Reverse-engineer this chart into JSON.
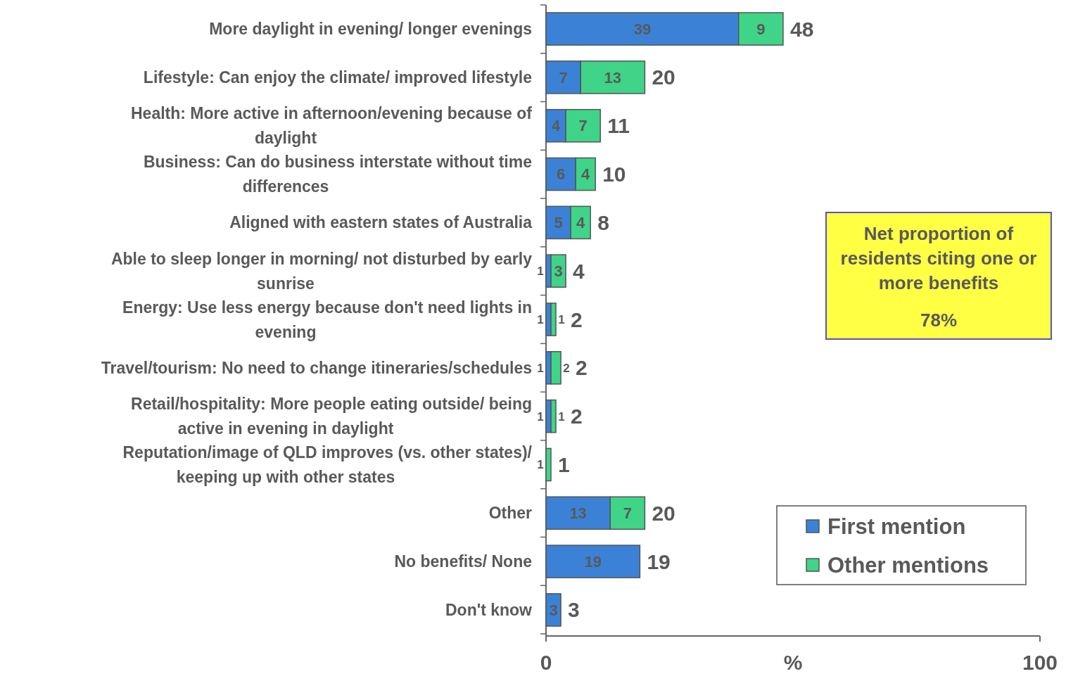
{
  "chart_data": {
    "type": "bar",
    "orientation": "horizontal",
    "stacked": true,
    "categories": [
      "More daylight in evening/ longer evenings",
      "Lifestyle: Can enjoy the climate/ improved lifestyle",
      "Health: More active in afternoon/evening because of daylight",
      "Business: Can do business interstate without time differences",
      "Aligned with eastern states of Australia",
      "Able to sleep longer in morning/ not disturbed by early sunrise",
      "Energy: Use less energy because don't need lights in evening",
      "Travel/tourism: No need to change itineraries/schedules",
      "Retail/hospitality: More people eating outside/ being active in evening in daylight",
      "Reputation/image of QLD improves (vs. other states)/ keeping up with other states",
      "Other",
      "No benefits/ None",
      "Don't know"
    ],
    "series": [
      {
        "name": "First mention",
        "color": "#3b82d6",
        "values": [
          39,
          7,
          4,
          6,
          5,
          1,
          1,
          1,
          1,
          null,
          13,
          19,
          3
        ]
      },
      {
        "name": "Other mentions",
        "color": "#3fd488",
        "values": [
          9,
          13,
          7,
          4,
          4,
          3,
          1,
          2,
          1,
          1,
          7,
          null,
          null
        ]
      }
    ],
    "data_labels": true,
    "totals": [
      "48",
      "20",
      "11",
      "10",
      "8",
      "4",
      "2",
      "2",
      "2",
      "1",
      "20",
      "19",
      "3"
    ],
    "xlim": [
      0,
      100
    ],
    "xticks": [
      0,
      100
    ],
    "xlabel": "%",
    "legend": "bottom right",
    "annotations": [
      "Net proportion of residents citing one or more benefits",
      "78%"
    ]
  }
}
